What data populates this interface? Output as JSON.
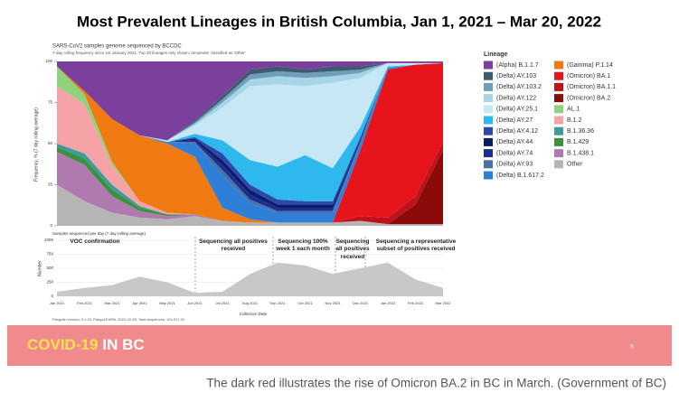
{
  "slide": {
    "title": "Most Prevalent Lineages in British Columbia, Jan 1, 2021 – Mar 20, 2022",
    "chart_header": "SARS-CoV2 samples genome sequenced by BCCDC",
    "chart_subtitle": "7-day rolling frequency since 1st January 2021.  Top 20 lineages only shown, remainder classified as 'Other'",
    "footnote": "Pangolin version: 3.1.20, PangoLEARN: 2022-02-28, Total sequences: 104,317.00",
    "footer_highlight": "COVID-19",
    "footer_rest": "IN BC",
    "slide_number": "5",
    "caption": "The dark red illustrates the rise of Omicron BA.2 in BC in March. (Government of BC)"
  },
  "chart_data": [
    {
      "type": "stacked-area",
      "y_label": "Frequency, % (7 day rolling average)",
      "legend_title": "Lineage",
      "ylim": [
        0,
        100
      ],
      "yticks": [
        0,
        25,
        50,
        75,
        100
      ],
      "series": [
        {
          "name": "(Alpha) B.1.1.7",
          "color": "#7b3f9e",
          "values": [
            3,
            18,
            35,
            45,
            48,
            36,
            21,
            5,
            3,
            5,
            3,
            3,
            1,
            1,
            1
          ]
        },
        {
          "name": "(Delta) AY.103",
          "color": "#3b5b6e",
          "values": [
            0,
            0,
            0,
            0,
            0,
            1,
            2,
            3,
            3,
            2,
            3,
            2,
            0,
            0,
            0
          ]
        },
        {
          "name": "(Delta) AY.103.2",
          "color": "#6f9fb8",
          "values": [
            0,
            0,
            0,
            0,
            0,
            1,
            2,
            3,
            3,
            3,
            3,
            2,
            0,
            0,
            0
          ]
        },
        {
          "name": "(Delta) AY.122",
          "color": "#a6d4e8",
          "values": [
            0,
            0,
            0,
            0,
            0,
            1,
            3,
            4,
            5,
            5,
            4,
            3,
            0,
            0,
            0
          ]
        },
        {
          "name": "(Delta) AY.25.1",
          "color": "#c8e7f4",
          "values": [
            0,
            0,
            0,
            0,
            1,
            5,
            20,
            45,
            50,
            42,
            52,
            30,
            2,
            1,
            0
          ]
        },
        {
          "name": "(Delta) AY.27",
          "color": "#2fb8ee",
          "values": [
            0,
            0,
            0,
            0,
            0,
            2,
            8,
            15,
            20,
            28,
            20,
            6,
            1,
            0,
            0
          ]
        },
        {
          "name": "(Delta) AY.4.12",
          "color": "#2b49a8",
          "values": [
            0,
            0,
            0,
            0,
            0,
            1,
            4,
            3,
            3,
            2,
            2,
            1,
            0,
            0,
            0
          ]
        },
        {
          "name": "(Delta) AY.44",
          "color": "#0c1b6b",
          "values": [
            0,
            0,
            0,
            0,
            0,
            1,
            3,
            3,
            2,
            2,
            2,
            1,
            0,
            0,
            0
          ]
        },
        {
          "name": "(Delta) AY.74",
          "color": "#1a2f8f",
          "values": [
            0,
            0,
            0,
            0,
            0,
            1,
            3,
            3,
            2,
            2,
            2,
            1,
            0,
            0,
            0
          ]
        },
        {
          "name": "(Delta) AY.93",
          "color": "#4c6fa8",
          "values": [
            0,
            0,
            0,
            0,
            0,
            1,
            3,
            2,
            1,
            1,
            1,
            1,
            0,
            0,
            0
          ]
        },
        {
          "name": "(Delta) B.1.617.2",
          "color": "#2f7fd8",
          "values": [
            0,
            0,
            0,
            0,
            1,
            8,
            20,
            10,
            6,
            6,
            6,
            4,
            1,
            0,
            0
          ]
        },
        {
          "name": "(Gamma) P.1.14",
          "color": "#f07a12",
          "values": [
            0,
            2,
            26,
            40,
            42,
            35,
            8,
            2,
            0,
            0,
            0,
            0,
            0,
            0,
            0
          ]
        },
        {
          "name": "(Omicron) BA.1",
          "color": "#e8141c",
          "values": [
            0,
            0,
            0,
            0,
            0,
            0,
            0,
            0,
            0,
            0,
            0,
            40,
            90,
            80,
            48
          ]
        },
        {
          "name": "(Omicron) BA.1.1",
          "color": "#c0121a",
          "values": [
            0,
            0,
            0,
            0,
            0,
            0,
            0,
            0,
            0,
            0,
            0,
            3,
            4,
            5,
            5
          ]
        },
        {
          "name": "(Omicron) BA.2",
          "color": "#8b0a0a",
          "values": [
            0,
            0,
            0,
            0,
            0,
            0,
            0,
            0,
            0,
            0,
            0,
            0,
            0,
            12,
            45
          ]
        },
        {
          "name": "AL.1",
          "color": "#8fd17c",
          "values": [
            12,
            6,
            2,
            0,
            0,
            0,
            0,
            0,
            0,
            0,
            0,
            0,
            0,
            0,
            0
          ]
        },
        {
          "name": "B.1.2",
          "color": "#f5a3a6",
          "values": [
            35,
            30,
            12,
            3,
            1,
            0,
            0,
            0,
            0,
            0,
            0,
            0,
            0,
            0,
            0
          ]
        },
        {
          "name": "B.1.36.36",
          "color": "#3b9c9c",
          "values": [
            2,
            3,
            3,
            1,
            0,
            0,
            0,
            0,
            0,
            0,
            0,
            0,
            0,
            0,
            0
          ]
        },
        {
          "name": "B.1.429",
          "color": "#3e8f3e",
          "values": [
            3,
            4,
            4,
            2,
            1,
            0,
            0,
            0,
            0,
            0,
            0,
            0,
            0,
            0,
            0
          ]
        },
        {
          "name": "B.1.438.1",
          "color": "#b07ab0",
          "values": [
            20,
            22,
            10,
            4,
            2,
            1,
            0,
            0,
            0,
            0,
            0,
            0,
            0,
            0,
            0
          ]
        },
        {
          "name": "Other",
          "color": "#b5b5b5",
          "values": [
            25,
            15,
            8,
            5,
            4,
            6,
            3,
            2,
            2,
            2,
            2,
            3,
            1,
            1,
            1
          ]
        }
      ]
    },
    {
      "type": "area",
      "title": "Samples sequenced per day (7 day rolling average)",
      "y_label": "Number",
      "x_label": "Collection Date",
      "categories": [
        "Jan 2021",
        "Feb 2021",
        "Mar 2021",
        "Apr 2021",
        "May 2021",
        "Jun 2021",
        "Jul 2021",
        "Aug 2021",
        "Sep 2021",
        "Oct 2021",
        "Nov 2021",
        "Dec 2021",
        "Jan 2022",
        "Feb 2022",
        "Mar 2022"
      ],
      "values": [
        80,
        150,
        200,
        350,
        250,
        60,
        80,
        400,
        600,
        550,
        400,
        500,
        600,
        300,
        150
      ],
      "color": "#c8c8c8",
      "ylim": [
        0,
        1000
      ],
      "yticks": [
        0,
        250,
        500,
        750,
        1000
      ],
      "annotations": [
        "VOC confirmation",
        "Sequencing all positives received",
        "Sequencing 100% week 1 each month",
        "Sequencing all positives received",
        "Sequencing a representative subset of positives received"
      ]
    }
  ]
}
